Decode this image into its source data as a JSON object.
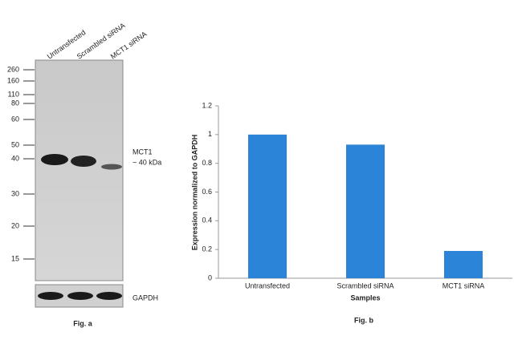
{
  "blot": {
    "lanes": [
      "Untransfected",
      "Scrambled siRNA",
      "MCT1 siRNA"
    ],
    "markers": [
      "260",
      "160",
      "110",
      "80",
      "60",
      "50",
      "40",
      "30",
      "20",
      "15"
    ],
    "band_label": "MCT1",
    "band_size": "~ 40 kDa",
    "loading_label": "GAPDH",
    "caption": "Fig. a"
  },
  "chart_data": {
    "type": "bar",
    "caption": "Fig. b",
    "categories": [
      "Untransfected",
      "Scrambled siRNA",
      "MCT1 siRNA"
    ],
    "values": [
      1,
      0.93,
      0.19
    ],
    "color": "#2b84d8",
    "ylim": [
      0,
      1.2
    ],
    "yticks": [
      0,
      0.2,
      0.4,
      0.6,
      0.8,
      1,
      1.2
    ],
    "ylabel": "Expression normalized to GAPDH",
    "xlabel": "Samples"
  }
}
